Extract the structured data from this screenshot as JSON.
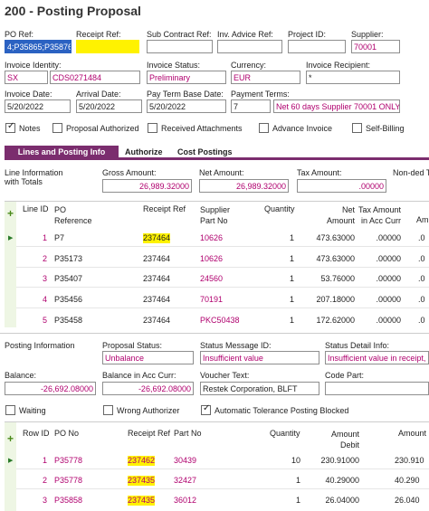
{
  "title": "200 - Posting Proposal",
  "header": {
    "po_ref_label": "PO Ref:",
    "po_ref_value": "4;P35865;P35876",
    "receipt_ref_label": "Receipt Ref:",
    "receipt_ref_value": "",
    "sub_contract_label": "Sub Contract Ref:",
    "sub_contract_value": "",
    "inv_advice_label": "Inv. Advice Ref:",
    "inv_advice_value": "",
    "project_label": "Project ID:",
    "project_value": "",
    "supplier_label": "Supplier:",
    "supplier_value": "70001",
    "invoice_identity_label": "Invoice Identity:",
    "invoice_identity_a": "SX",
    "invoice_identity_b": "CDS0271484",
    "invoice_status_label": "Invoice Status:",
    "invoice_status_value": "Preliminary",
    "currency_label": "Currency:",
    "currency_value": "EUR",
    "recipient_label": "Invoice Recipient:",
    "recipient_value": "*",
    "invoice_date_label": "Invoice Date:",
    "invoice_date_value": "5/20/2022",
    "arrival_date_label": "Arrival Date:",
    "arrival_date_value": "5/20/2022",
    "pay_term_label": "Pay Term Base Date:",
    "pay_term_value": "5/20/2022",
    "payment_terms_label": "Payment Terms:",
    "payment_terms_code": "7",
    "payment_terms_text": "Net 60 days Supplier 70001 ONLY"
  },
  "checkboxes": {
    "notes": "Notes",
    "proposal_authorized": "Proposal Authorized",
    "received_attachments": "Received Attachments",
    "advance_invoice": "Advance Invoice",
    "self_billing": "Self-Billing"
  },
  "tabs": [
    "Lines and Posting Info",
    "Authorize",
    "Cost Postings"
  ],
  "totals": {
    "line_info_label": "Line Information with Totals",
    "gross_label": "Gross Amount:",
    "gross_value": "26,989.32000",
    "net_label": "Net Amount:",
    "net_value": "26,989.32000",
    "tax_label": "Tax Amount:",
    "tax_value": ".00000",
    "nonded_label": "Non-ded T"
  },
  "lines_grid": {
    "headers": {
      "line_id": "Line ID",
      "po_ref": "PO Reference",
      "receipt_ref": "Receipt Ref",
      "supplier_part": "Supplier Part No",
      "quantity": "Quantity",
      "net_amount": "Net Amount",
      "tax_amount": "Tax Amount in Acc Curr",
      "am": "Am"
    },
    "rows": [
      {
        "id": "1",
        "po": "P7",
        "receipt": "237464",
        "part": "10626",
        "qty": "1",
        "net": "473.63000",
        "tax": ".00000",
        "am": ".0"
      },
      {
        "id": "2",
        "po": "P35173",
        "receipt": "237464",
        "part": "10626",
        "qty": "1",
        "net": "473.63000",
        "tax": ".00000",
        "am": ".0"
      },
      {
        "id": "3",
        "po": "P35407",
        "receipt": "237464",
        "part": "24560",
        "qty": "1",
        "net": "53.76000",
        "tax": ".00000",
        "am": ".0"
      },
      {
        "id": "4",
        "po": "P35456",
        "receipt": "237464",
        "part": "70191",
        "qty": "1",
        "net": "207.18000",
        "tax": ".00000",
        "am": ".0"
      },
      {
        "id": "5",
        "po": "P35458",
        "receipt": "237464",
        "part": "PKC50438",
        "qty": "1",
        "net": "172.62000",
        "tax": ".00000",
        "am": ".0"
      }
    ]
  },
  "posting": {
    "posting_info_label": "Posting Information",
    "proposal_status_label": "Proposal Status:",
    "proposal_status_value": "Unbalance",
    "status_msg_label": "Status Message ID:",
    "status_msg_value": "Insufficient value",
    "status_detail_label": "Status Detail Info:",
    "status_detail_value": "Insufficient value in receipt, \\",
    "balance_label": "Balance:",
    "balance_value": "-26,692.08000",
    "balance_acc_label": "Balance in Acc Curr:",
    "balance_acc_value": "-26,692.08000",
    "voucher_label": "Voucher Text:",
    "voucher_value": "Restek Corporation, BLFT",
    "code_part_label": "Code Part:",
    "code_part_value": "",
    "waiting": "Waiting",
    "wrong_authorizer": "Wrong Authorizer",
    "auto_tolerance": "Automatic Tolerance Posting Blocked"
  },
  "receipt_grid": {
    "headers": {
      "row_id": "Row ID",
      "po_no": "PO No",
      "receipt_ref": "Receipt Ref",
      "part_no": "Part No",
      "quantity": "Quantity",
      "amount_debit": "Amount Debit",
      "amount": "Amount"
    },
    "rows": [
      {
        "id": "1",
        "po": "P35778",
        "receipt": "237462",
        "part": "30439",
        "qty": "10",
        "debit": "230.91000",
        "amount": "230.910"
      },
      {
        "id": "2",
        "po": "P35778",
        "receipt": "237435",
        "part": "32427",
        "qty": "1",
        "debit": "40.29000",
        "amount": "40.290"
      },
      {
        "id": "3",
        "po": "P35858",
        "receipt": "237435",
        "part": "36012",
        "qty": "1",
        "debit": "26.04000",
        "amount": "26.040"
      }
    ]
  }
}
